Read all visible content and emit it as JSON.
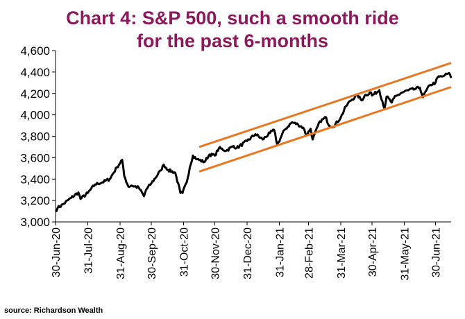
{
  "title_line1": "Chart 4: S&P 500, such a smooth ride",
  "title_line2": "for the past 6-months",
  "source": "source: Richardson Wealth",
  "colors": {
    "title": "#8b1a5c",
    "series": "#000000",
    "channel": "#e87722",
    "axis": "#000000"
  },
  "chart_data": {
    "type": "line",
    "title": "Chart 4: S&P 500, such a smooth ride for the past 6-months",
    "xlabel": "",
    "ylabel": "",
    "ylim": [
      3000,
      4600
    ],
    "yticks": [
      3000,
      3200,
      3400,
      3600,
      3800,
      4000,
      4200,
      4400,
      4600
    ],
    "ytick_labels": [
      "3,000",
      "3,200",
      "3,400",
      "3,600",
      "3,800",
      "4,000",
      "4,200",
      "4,400",
      "4,600"
    ],
    "xlim": [
      "2020-06-30",
      "2021-07-15"
    ],
    "xtick_labels": [
      "30-Jun-20",
      "31-Jul-20",
      "31-Aug-20",
      "30-Sep-20",
      "31-Oct-20",
      "30-Nov-20",
      "31-Dec-20",
      "31-Jan-21",
      "28-Feb-21",
      "31-Mar-21",
      "30-Apr-21",
      "31-May-21",
      "30-Jun-21"
    ],
    "xtick_dates": [
      "2020-06-30",
      "2020-07-31",
      "2020-08-31",
      "2020-09-30",
      "2020-10-31",
      "2020-11-30",
      "2020-12-31",
      "2021-01-31",
      "2021-02-28",
      "2021-03-31",
      "2021-04-30",
      "2021-05-31",
      "2021-06-30"
    ],
    "grid": false,
    "legend": "none",
    "series": [
      {
        "values": [
          [
            "2020-06-30",
            3100
          ],
          [
            "2020-07-02",
            3130
          ],
          [
            "2020-07-08",
            3170
          ],
          [
            "2020-07-15",
            3225
          ],
          [
            "2020-07-22",
            3275
          ],
          [
            "2020-07-24",
            3215
          ],
          [
            "2020-07-31",
            3270
          ],
          [
            "2020-08-07",
            3350
          ],
          [
            "2020-08-14",
            3370
          ],
          [
            "2020-08-21",
            3400
          ],
          [
            "2020-08-28",
            3510
          ],
          [
            "2020-09-02",
            3580
          ],
          [
            "2020-09-04",
            3430
          ],
          [
            "2020-09-08",
            3330
          ],
          [
            "2020-09-11",
            3340
          ],
          [
            "2020-09-18",
            3320
          ],
          [
            "2020-09-23",
            3240
          ],
          [
            "2020-09-25",
            3300
          ],
          [
            "2020-09-30",
            3360
          ],
          [
            "2020-10-09",
            3480
          ],
          [
            "2020-10-12",
            3535
          ],
          [
            "2020-10-16",
            3485
          ],
          [
            "2020-10-23",
            3460
          ],
          [
            "2020-10-28",
            3270
          ],
          [
            "2020-10-30",
            3270
          ],
          [
            "2020-11-03",
            3370
          ],
          [
            "2020-11-06",
            3510
          ],
          [
            "2020-11-09",
            3620
          ],
          [
            "2020-11-13",
            3585
          ],
          [
            "2020-11-20",
            3560
          ],
          [
            "2020-11-25",
            3630
          ],
          [
            "2020-11-30",
            3620
          ],
          [
            "2020-12-04",
            3690
          ],
          [
            "2020-12-11",
            3665
          ],
          [
            "2020-12-18",
            3710
          ],
          [
            "2020-12-21",
            3690
          ],
          [
            "2020-12-31",
            3755
          ],
          [
            "2021-01-08",
            3820
          ],
          [
            "2021-01-15",
            3770
          ],
          [
            "2021-01-22",
            3830
          ],
          [
            "2021-01-26",
            3860
          ],
          [
            "2021-01-29",
            3720
          ],
          [
            "2021-02-05",
            3860
          ],
          [
            "2021-02-12",
            3930
          ],
          [
            "2021-02-18",
            3910
          ],
          [
            "2021-02-23",
            3880
          ],
          [
            "2021-02-26",
            3810
          ],
          [
            "2021-03-02",
            3870
          ],
          [
            "2021-03-04",
            3770
          ],
          [
            "2021-03-11",
            3940
          ],
          [
            "2021-03-17",
            3975
          ],
          [
            "2021-03-19",
            3910
          ],
          [
            "2021-03-24",
            3890
          ],
          [
            "2021-03-31",
            3975
          ],
          [
            "2021-04-05",
            4080
          ],
          [
            "2021-04-09",
            4130
          ],
          [
            "2021-04-16",
            4185
          ],
          [
            "2021-04-20",
            4135
          ],
          [
            "2021-04-23",
            4180
          ],
          [
            "2021-04-29",
            4210
          ],
          [
            "2021-04-30",
            4180
          ],
          [
            "2021-05-07",
            4230
          ],
          [
            "2021-05-12",
            4060
          ],
          [
            "2021-05-14",
            4170
          ],
          [
            "2021-05-19",
            4115
          ],
          [
            "2021-05-21",
            4155
          ],
          [
            "2021-05-28",
            4205
          ],
          [
            "2021-06-04",
            4230
          ],
          [
            "2021-06-10",
            4240
          ],
          [
            "2021-06-15",
            4255
          ],
          [
            "2021-06-18",
            4165
          ],
          [
            "2021-06-21",
            4225
          ],
          [
            "2021-06-25",
            4280
          ],
          [
            "2021-06-30",
            4300
          ],
          [
            "2021-07-02",
            4350
          ],
          [
            "2021-07-07",
            4360
          ],
          [
            "2021-07-09",
            4370
          ],
          [
            "2021-07-12",
            4385
          ],
          [
            "2021-07-14",
            4375
          ],
          [
            "2021-07-15",
            4345
          ]
        ]
      }
    ],
    "channel": [
      {
        "from": [
          "2020-11-15",
          3700
        ],
        "to": [
          "2021-07-15",
          4485
        ]
      },
      {
        "from": [
          "2020-11-15",
          3470
        ],
        "to": [
          "2021-07-15",
          4260
        ]
      }
    ]
  }
}
